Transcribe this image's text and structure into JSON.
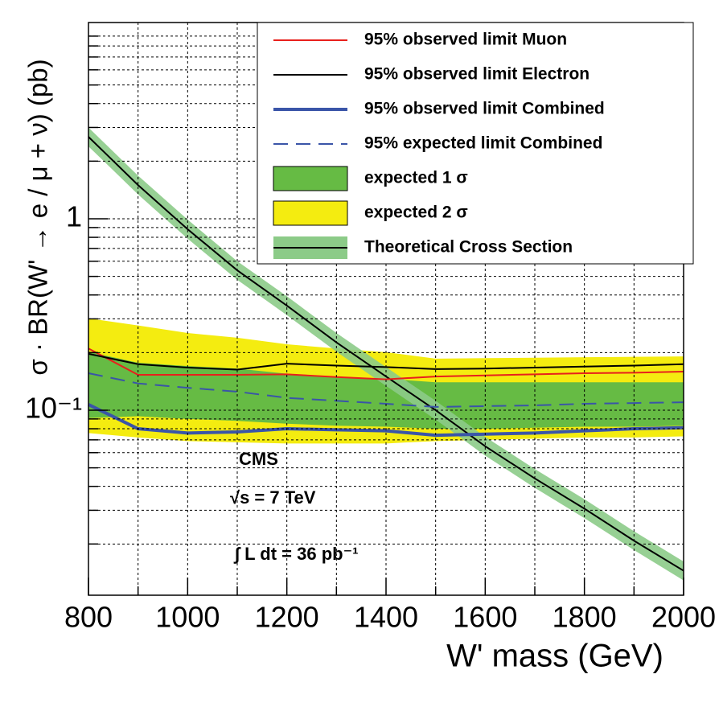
{
  "chart_data": {
    "type": "line",
    "ylabel": "σ · BR(W' → e / μ + ν) (pb)",
    "xlabel": "W' mass (GeV)",
    "annotations": [
      "CMS",
      "√s = 7 TeV",
      "∫ L dt = 36 pb⁻¹"
    ],
    "x": [
      800,
      900,
      1000,
      1100,
      1200,
      1300,
      1400,
      1500,
      1600,
      1700,
      1800,
      1900,
      2000
    ],
    "xlim": [
      800,
      2000
    ],
    "xticks": [
      800,
      1000,
      1200,
      1400,
      1600,
      1800,
      2000
    ],
    "xminorticks": [
      900,
      1100,
      1300,
      1500,
      1700,
      1900
    ],
    "ylim": [
      0.0108,
      10.6
    ],
    "ylog": true,
    "yticks": [
      {
        "value": 0.1,
        "label": "10⁻¹"
      },
      1
    ],
    "yminorticks": [
      0.02,
      0.03,
      0.04,
      0.05,
      0.06,
      0.07,
      0.08,
      0.09,
      0.2,
      0.3,
      0.4,
      0.5,
      0.6,
      0.7,
      0.8,
      0.9,
      2,
      3,
      4,
      5,
      6,
      7,
      8,
      9
    ],
    "grid": true,
    "legend": "upper right",
    "series": [
      {
        "name": "95% observed limit Muon",
        "style": "line",
        "color": "#e8201c",
        "width": 2,
        "values": [
          0.21,
          0.153,
          0.153,
          0.153,
          0.154,
          0.149,
          0.145,
          0.15,
          0.152,
          0.154,
          0.156,
          0.157,
          0.159
        ]
      },
      {
        "name": "95% observed limit Electron",
        "style": "line",
        "color": "#000000",
        "width": 2,
        "values": [
          0.197,
          0.174,
          0.167,
          0.163,
          0.175,
          0.171,
          0.168,
          0.164,
          0.165,
          0.167,
          0.169,
          0.171,
          0.174
        ]
      },
      {
        "name": "95% observed limit Combined",
        "style": "line",
        "color": "#3a55a8",
        "width": 4,
        "values": [
          0.107,
          0.08,
          0.076,
          0.077,
          0.08,
          0.079,
          0.078,
          0.074,
          0.075,
          0.076,
          0.078,
          0.08,
          0.081
        ]
      },
      {
        "name": "95% expected limit Combined",
        "style": "dashed",
        "color": "#3a55a8",
        "width": 2,
        "values": [
          0.156,
          0.138,
          0.131,
          0.125,
          0.116,
          0.112,
          0.108,
          0.104,
          0.105,
          0.106,
          0.108,
          0.109,
          0.11
        ]
      },
      {
        "name": "expected 1 σ",
        "style": "band",
        "color": "#66bb44",
        "upper": [
          0.202,
          0.177,
          0.17,
          0.165,
          0.155,
          0.15,
          0.146,
          0.14,
          0.14,
          0.14,
          0.14,
          0.14,
          0.14
        ],
        "lower": [
          0.091,
          0.093,
          0.09,
          0.088,
          0.085,
          0.083,
          0.082,
          0.08,
          0.08,
          0.081,
          0.082,
          0.082,
          0.083
        ]
      },
      {
        "name": "expected 2 σ",
        "style": "band",
        "color": "#f4ec10",
        "upper": [
          0.302,
          0.277,
          0.253,
          0.239,
          0.221,
          0.21,
          0.201,
          0.186,
          0.187,
          0.188,
          0.189,
          0.19,
          0.191
        ],
        "lower": [
          0.076,
          0.072,
          0.069,
          0.068,
          0.067,
          0.067,
          0.067,
          0.069,
          0.07,
          0.071,
          0.072,
          0.072,
          0.073
        ]
      },
      {
        "name": "Theoretical Cross Section",
        "style": "theory",
        "color": "#000000",
        "band_color": "#8ccb88",
        "width": 2,
        "values": [
          2.68,
          1.5,
          0.882,
          0.538,
          0.352,
          0.226,
          0.15,
          0.1,
          0.0648,
          0.044,
          0.0306,
          0.0208,
          0.0145
        ],
        "upper": [
          3.0,
          1.68,
          0.99,
          0.6,
          0.394,
          0.253,
          0.168,
          0.112,
          0.0726,
          0.0493,
          0.0343,
          0.0233,
          0.0162
        ],
        "lower": [
          2.39,
          1.34,
          0.787,
          0.48,
          0.314,
          0.202,
          0.134,
          0.0893,
          0.0579,
          0.0393,
          0.0273,
          0.0186,
          0.0129
        ]
      }
    ]
  }
}
